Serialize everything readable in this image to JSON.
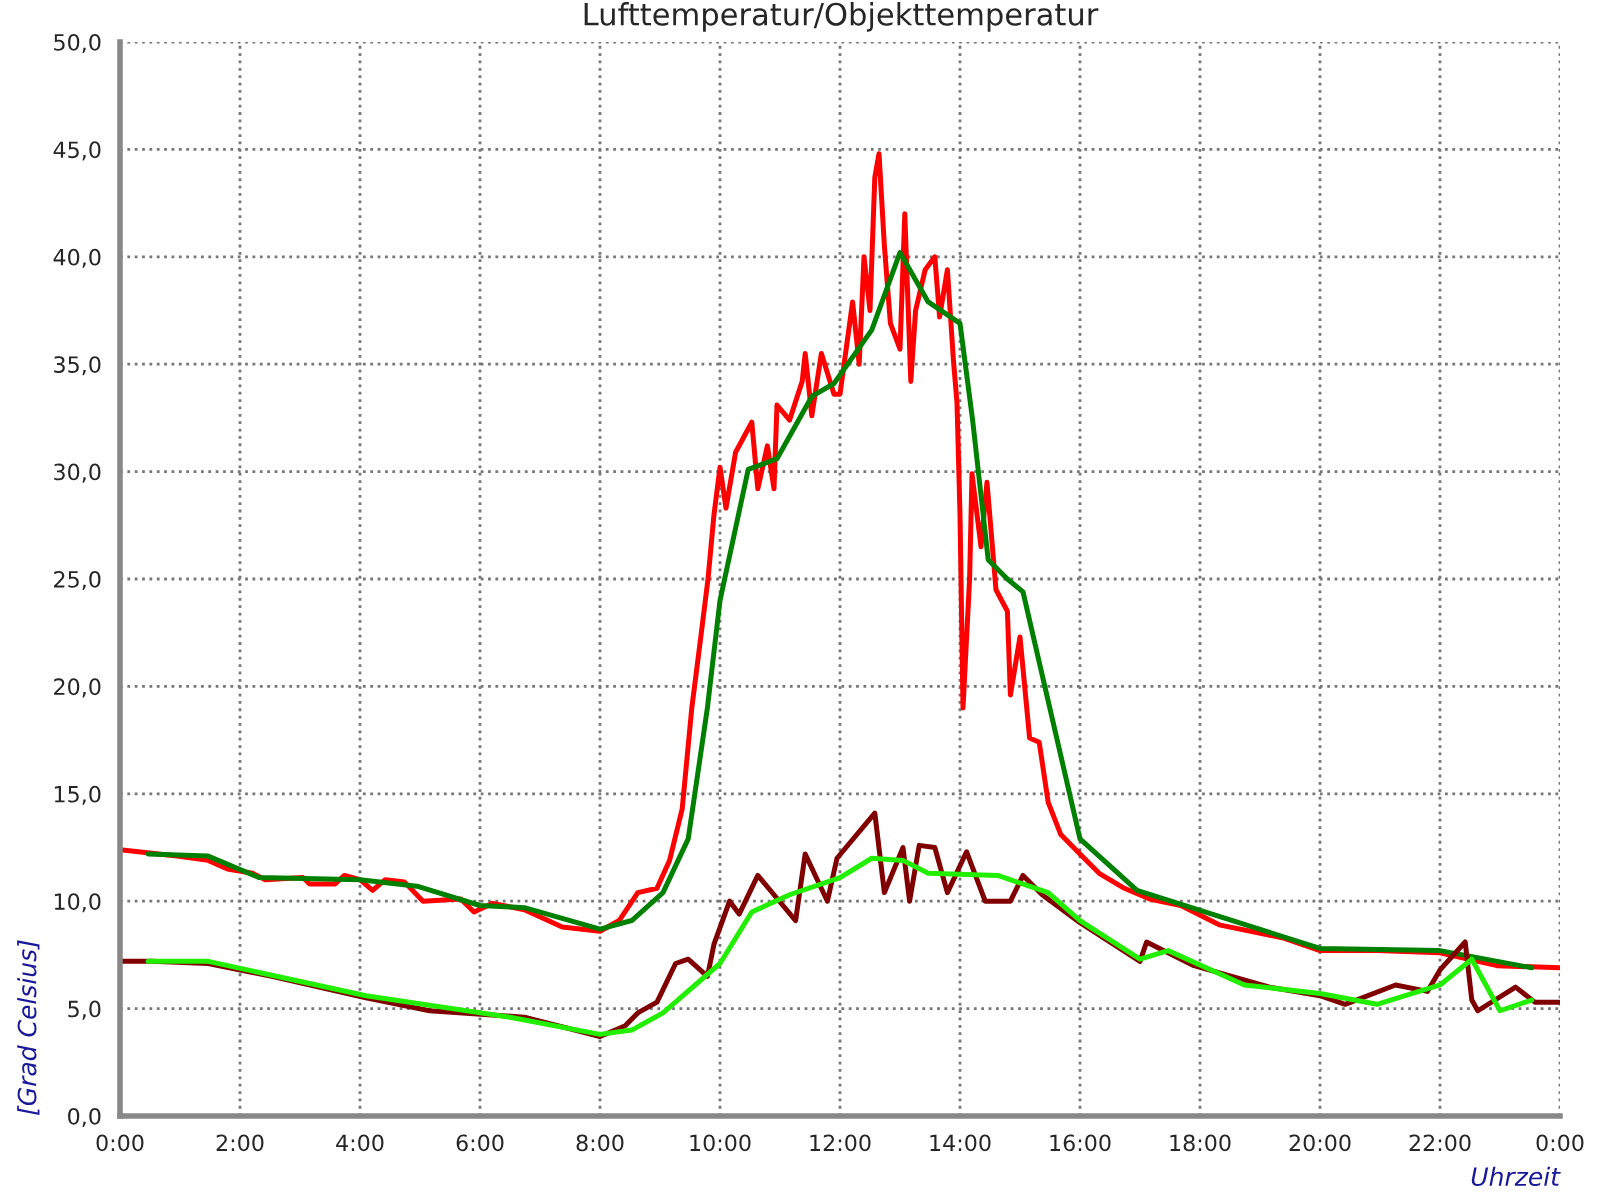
{
  "chart_data": {
    "type": "line",
    "title": "Lufttemperatur/Objekttemperatur",
    "xlabel": "Uhrzeit",
    "ylabel": "[Grad Celsius]",
    "xlim": [
      0,
      24
    ],
    "ylim": [
      0,
      50
    ],
    "xticks": [
      {
        "value": 0,
        "label": "0:00"
      },
      {
        "value": 2,
        "label": "2:00"
      },
      {
        "value": 4,
        "label": "4:00"
      },
      {
        "value": 6,
        "label": "6:00"
      },
      {
        "value": 8,
        "label": "8:00"
      },
      {
        "value": 10,
        "label": "10:00"
      },
      {
        "value": 12,
        "label": "12:00"
      },
      {
        "value": 14,
        "label": "14:00"
      },
      {
        "value": 16,
        "label": "16:00"
      },
      {
        "value": 18,
        "label": "18:00"
      },
      {
        "value": 20,
        "label": "20:00"
      },
      {
        "value": 22,
        "label": "22:00"
      },
      {
        "value": 24,
        "label": "0:00"
      }
    ],
    "yticks": [
      {
        "value": 0,
        "label": "0,0"
      },
      {
        "value": 5,
        "label": "5,0"
      },
      {
        "value": 10,
        "label": "10,0"
      },
      {
        "value": 15,
        "label": "15,0"
      },
      {
        "value": 20,
        "label": "20,0"
      },
      {
        "value": 25,
        "label": "25,0"
      },
      {
        "value": 30,
        "label": "30,0"
      },
      {
        "value": 35,
        "label": "35,0"
      },
      {
        "value": 40,
        "label": "40,0"
      },
      {
        "value": 45,
        "label": "45,0"
      },
      {
        "value": 50,
        "label": "50,0"
      }
    ],
    "grid": true,
    "marker": "none",
    "line_style": "solid",
    "series": [
      {
        "color": "#ff0000",
        "x": [
          0,
          0.95,
          1.47,
          1.79,
          2.21,
          2.42,
          3.05,
          3.16,
          3.58,
          3.74,
          4.0,
          4.21,
          4.42,
          4.74,
          5.05,
          5.68,
          5.9,
          6.21,
          6.74,
          7.37,
          8.0,
          8.32,
          8.63,
          8.95,
          9.16,
          9.37,
          9.53,
          9.68,
          9.8,
          9.9,
          10.0,
          10.1,
          10.26,
          10.53,
          10.63,
          10.79,
          10.9,
          10.95,
          11.16,
          11.37,
          11.42,
          11.53,
          11.69,
          11.9,
          12.0,
          12.21,
          12.32,
          12.4,
          12.5,
          12.58,
          12.65,
          12.74,
          12.84,
          13.0,
          13.08,
          13.18,
          13.26,
          13.42,
          13.58,
          13.66,
          13.79,
          13.89,
          13.95,
          14.0,
          14.05,
          14.16,
          14.2,
          14.35,
          14.45,
          14.6,
          14.79,
          14.84,
          15.0,
          15.16,
          15.32,
          15.47,
          15.68,
          16.0,
          16.32,
          16.74,
          17.16,
          17.68,
          18.32,
          19.37,
          20.0,
          20.95,
          22.0,
          22.95,
          24.0
        ],
        "values": [
          12.4,
          12.1,
          11.9,
          11.5,
          11.3,
          11.0,
          11.1,
          10.8,
          10.8,
          11.2,
          11.0,
          10.5,
          11.0,
          10.9,
          10.0,
          10.1,
          9.5,
          9.9,
          9.6,
          8.8,
          8.6,
          9.1,
          10.4,
          10.6,
          11.9,
          14.3,
          19.0,
          22.3,
          25.0,
          28.0,
          30.2,
          28.3,
          30.9,
          32.3,
          29.2,
          31.2,
          29.2,
          33.1,
          32.4,
          34.2,
          35.5,
          32.6,
          35.5,
          33.6,
          33.6,
          37.9,
          35.0,
          40.0,
          37.5,
          43.7,
          44.8,
          40.5,
          36.9,
          35.7,
          42.0,
          34.2,
          37.5,
          39.4,
          40.0,
          37.2,
          39.4,
          35.2,
          33.2,
          28.0,
          19.0,
          25.0,
          29.9,
          26.5,
          29.5,
          24.5,
          23.5,
          19.6,
          22.3,
          17.6,
          17.4,
          14.6,
          13.1,
          12.2,
          11.3,
          10.6,
          10.1,
          9.8,
          8.9,
          8.3,
          7.7,
          7.7,
          7.6,
          7.0,
          6.9
        ]
      },
      {
        "color": "#008000",
        "x": [
          0.47,
          1.47,
          2.32,
          4.0,
          4.95,
          6.0,
          6.74,
          8.0,
          8.53,
          9.05,
          9.47,
          9.79,
          10.0,
          10.47,
          10.95,
          11.53,
          11.9,
          12.53,
          13.0,
          13.47,
          14.0,
          14.21,
          14.47,
          14.79,
          15.05,
          16.0,
          16.95,
          20.0,
          22.0,
          23.53
        ],
        "values": [
          12.2,
          12.1,
          11.1,
          11.0,
          10.7,
          9.8,
          9.7,
          8.7,
          9.1,
          10.4,
          12.9,
          19.0,
          24.0,
          30.1,
          30.6,
          33.5,
          34.1,
          36.6,
          40.2,
          37.9,
          36.9,
          32.4,
          25.9,
          25.0,
          24.4,
          12.9,
          10.5,
          7.8,
          7.7,
          6.9
        ]
      },
      {
        "color": "#800000",
        "x": [
          0,
          0.53,
          1.47,
          2.53,
          4.1,
          5.16,
          6.74,
          8.0,
          8.42,
          8.63,
          8.95,
          9.26,
          9.47,
          9.79,
          9.9,
          10.16,
          10.32,
          10.63,
          10.9,
          11.26,
          11.42,
          11.79,
          11.95,
          12.58,
          12.74,
          13.05,
          13.16,
          13.32,
          13.58,
          13.79,
          14.11,
          14.42,
          14.84,
          15.05,
          15.37,
          16.0,
          17.0,
          17.11,
          17.9,
          19.16,
          20.0,
          20.42,
          21.26,
          21.79,
          22.0,
          22.42,
          22.53,
          22.63,
          23.26,
          23.58,
          24.0
        ],
        "values": [
          7.2,
          7.2,
          7.1,
          6.5,
          5.5,
          4.9,
          4.6,
          3.7,
          4.2,
          4.8,
          5.3,
          7.1,
          7.3,
          6.5,
          8.0,
          10.0,
          9.4,
          11.2,
          10.3,
          9.1,
          12.2,
          10.0,
          12.0,
          14.1,
          10.4,
          12.5,
          10.0,
          12.6,
          12.5,
          10.4,
          12.3,
          10.0,
          10.0,
          11.2,
          10.3,
          9.0,
          7.2,
          8.1,
          7.0,
          6.0,
          5.6,
          5.2,
          6.1,
          5.8,
          6.8,
          8.1,
          5.4,
          4.9,
          6.0,
          5.3,
          5.3
        ]
      },
      {
        "color": "#22ee00",
        "x": [
          0.47,
          1.47,
          4.1,
          6.5,
          8.0,
          8.53,
          9.05,
          10.0,
          10.53,
          11.16,
          12.0,
          12.53,
          13.05,
          13.47,
          14.63,
          15.47,
          16.0,
          17.0,
          17.47,
          18.74,
          20.0,
          20.95,
          22.0,
          22.53,
          23.0,
          23.53
        ],
        "values": [
          7.2,
          7.2,
          5.6,
          4.6,
          3.8,
          4.0,
          4.8,
          7.1,
          9.5,
          10.3,
          11.1,
          12.0,
          11.9,
          11.3,
          11.2,
          10.4,
          9.1,
          7.3,
          7.7,
          6.1,
          5.7,
          5.2,
          6.1,
          7.3,
          4.9,
          5.4
        ]
      }
    ]
  }
}
